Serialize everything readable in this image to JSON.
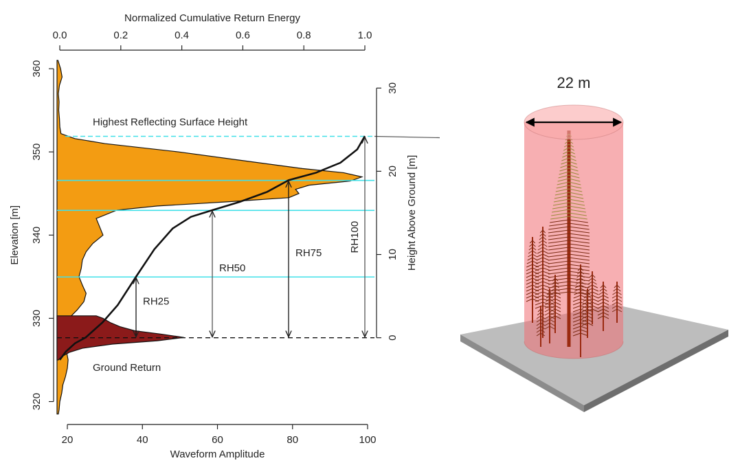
{
  "chart_data": {
    "type": "waveform",
    "xlabel": "Waveform Amplitude",
    "xlim": [
      17.25,
      101.83
    ],
    "xticks": [
      20,
      40,
      60,
      80,
      100
    ],
    "x2label": "Normalized Cumulative Return Energy",
    "x2lim": [
      -0.009,
      1.0315
    ],
    "x2ticks": [
      {
        "value": 0,
        "label": "0.0"
      },
      0.2,
      0.4,
      0.6,
      0.8,
      {
        "value": 1,
        "label": "1.0"
      }
    ],
    "ylabel": "Elevation [m]",
    "ylim": [
      318.15,
      361.24
    ],
    "yticks": [
      320,
      330,
      340,
      350,
      360
    ],
    "y2label": "Height Above Ground [m]",
    "y2lim": [
      -9.52,
      33.57
    ],
    "y2ticks": [
      0,
      10,
      20,
      30
    ],
    "waveform": {
      "color": "#f39c12",
      "elevation": [
        361.0,
        360.0,
        359.0,
        358.0,
        357.0,
        356.0,
        355.0,
        354.0,
        353.0,
        352.2,
        351.6,
        351.0,
        350.0,
        349.0,
        348.0,
        347.5,
        347.0,
        346.5,
        346.0,
        345.5,
        345.0,
        344.5,
        344.0,
        343.5,
        343.0,
        342.0,
        341.0,
        340.0,
        339.0,
        338.0,
        337.0,
        336.0,
        335.0,
        334.0,
        333.0,
        332.0,
        331.0,
        330.0,
        329.0,
        328.0,
        327.0,
        326.0,
        325.0,
        324.0,
        323.0,
        322.0,
        321.0,
        320.0,
        319.0,
        318.5
      ],
      "amplitude": [
        17.5,
        18.2,
        18.6,
        17.9,
        17.6,
        17.8,
        17.7,
        17.9,
        18.0,
        18.3,
        22.0,
        30.0,
        49.7,
        66.0,
        82.6,
        93.6,
        98.5,
        95.4,
        84.4,
        80.8,
        81.7,
        79.0,
        62.5,
        44.0,
        33.2,
        27.7,
        28.6,
        29.5,
        26.8,
        25.0,
        24.0,
        23.7,
        23.1,
        24.0,
        25.0,
        24.4,
        22.6,
        20.4,
        19.8,
        19.5,
        19.5,
        19.8,
        20.2,
        20.0,
        19.5,
        18.8,
        18.5,
        18.0,
        17.8,
        17.6
      ]
    },
    "ground_return": {
      "label": "Ground Return",
      "color": "#8b1a1a",
      "elevation": [
        330.3,
        330.0,
        329.5,
        329.0,
        328.5,
        328.1,
        327.7,
        327.3,
        326.9,
        326.4,
        325.9,
        325.4,
        325.0
      ],
      "amplitude": [
        27.7,
        29.5,
        31.4,
        34.0,
        38.0,
        45.0,
        51.1,
        44.0,
        32.0,
        24.0,
        20.5,
        18.5,
        17.6
      ]
    },
    "cumulative_energy": {
      "color": "#111111",
      "elevation": [
        325.0,
        326.0,
        327.0,
        327.7,
        329.5,
        331.6,
        335.0,
        338.3,
        340.8,
        342.2,
        343.0,
        344.0,
        345.2,
        346.6,
        347.5,
        348.7,
        350.3,
        351.9
      ],
      "energy": [
        0.0,
        0.02,
        0.05,
        0.085,
        0.14,
        0.19,
        0.25,
        0.31,
        0.37,
        0.43,
        0.5,
        0.59,
        0.68,
        0.75,
        0.84,
        0.92,
        0.975,
        1.0
      ]
    },
    "rh_color": "#40e0e8",
    "rh_metrics": [
      {
        "label": "RH25",
        "energy": 0.25,
        "height": 7.3
      },
      {
        "label": "RH50",
        "energy": 0.5,
        "height": 15.3
      },
      {
        "label": "RH75",
        "energy": 0.75,
        "height": 18.9
      },
      {
        "label": "RH100",
        "energy": 1.0,
        "height": 24.2
      }
    ],
    "highest_surface_label": "Highest Reflecting Surface Height"
  },
  "illustration": {
    "diameter_label": "22 m"
  }
}
